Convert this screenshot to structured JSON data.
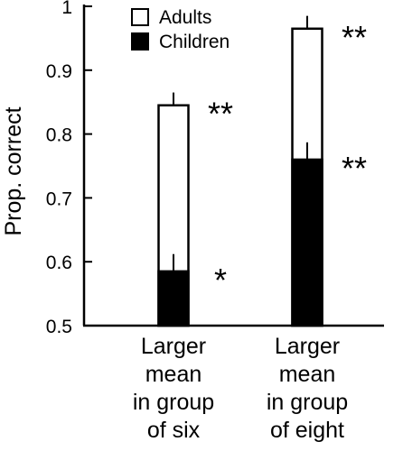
{
  "chart_data": {
    "type": "bar",
    "xlabel": "",
    "ylabel": "Prop. correct",
    "ylim": [
      0.5,
      1.0
    ],
    "yticks": [
      "0.5",
      "0.6",
      "0.7",
      "0.8",
      "0.9",
      "1"
    ],
    "tick_values": [
      0.5,
      0.6,
      0.7,
      0.8,
      0.9,
      1.0
    ],
    "grid": false,
    "legend_position": "top-left",
    "categories": [
      [
        "Larger",
        "mean",
        "in group",
        "of six"
      ],
      [
        "Larger",
        "mean",
        "in group",
        "of eight"
      ]
    ],
    "series": [
      {
        "name": "Adults",
        "values": [
          0.845,
          0.965
        ],
        "error": [
          0.02,
          0.02
        ],
        "significance": [
          "**",
          "**"
        ],
        "fill": "#ffffff"
      },
      {
        "name": "Children",
        "values": [
          0.585,
          0.76
        ],
        "error": [
          0.027,
          0.027
        ],
        "significance": [
          "*",
          "**"
        ],
        "fill": "#000000"
      }
    ]
  }
}
